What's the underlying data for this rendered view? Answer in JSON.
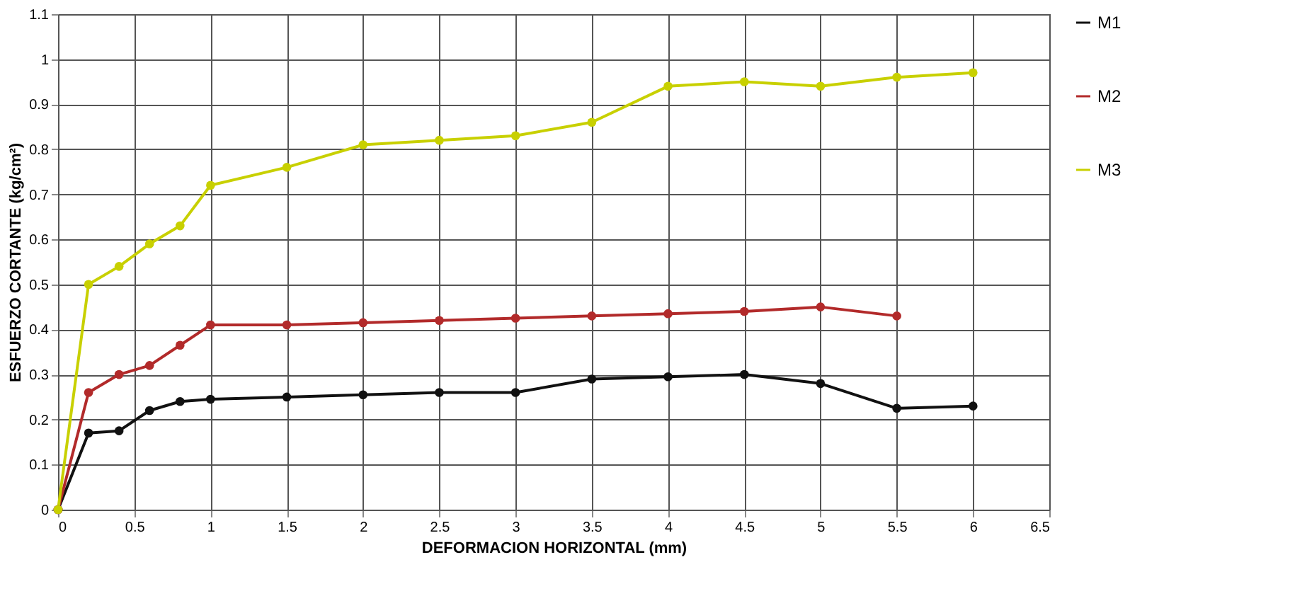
{
  "chart_data": {
    "type": "line",
    "xlabel": "DEFORMACION HORIZONTAL (mm)",
    "ylabel": "ESFUERZO CORTANTE (kg/cm²)",
    "x": [
      0,
      0.2,
      0.4,
      0.6,
      0.8,
      1,
      1.5,
      2,
      2.5,
      3,
      3.5,
      4,
      4.5,
      5,
      5.5,
      6
    ],
    "series": [
      {
        "name": "M1",
        "color": "#111111",
        "values": [
          0,
          0.17,
          0.175,
          0.22,
          0.24,
          0.245,
          0.25,
          0.255,
          0.26,
          0.26,
          0.29,
          0.295,
          0.3,
          0.28,
          0.225,
          0.23
        ]
      },
      {
        "name": "M2",
        "color": "#b22a2a",
        "values": [
          0,
          0.26,
          0.3,
          0.32,
          0.365,
          0.41,
          0.41,
          0.415,
          0.42,
          0.425,
          0.43,
          0.435,
          0.44,
          0.45,
          0.43,
          null
        ]
      },
      {
        "name": "M3",
        "color": "#c8d000",
        "values": [
          0,
          0.5,
          0.54,
          0.59,
          0.63,
          0.72,
          0.76,
          0.81,
          0.82,
          0.83,
          0.86,
          0.94,
          0.95,
          0.94,
          0.96,
          0.97
        ]
      }
    ],
    "xlim": [
      0,
      6.5
    ],
    "xticks": [
      0,
      0.5,
      1,
      1.5,
      2,
      2.5,
      3,
      3.5,
      4,
      4.5,
      5,
      5.5,
      6,
      6.5
    ],
    "ylim": [
      0,
      1.1
    ],
    "yticks": [
      0,
      0.1,
      0.2,
      0.3,
      0.4,
      0.5,
      0.6,
      0.7,
      0.8,
      0.9,
      1,
      1.1
    ],
    "grid": true,
    "legend": "right",
    "marker": "circle",
    "line_style": "solid"
  }
}
